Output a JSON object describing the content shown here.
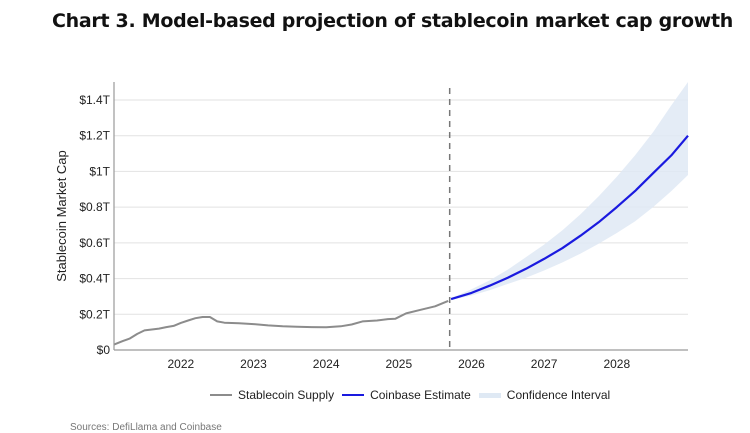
{
  "title": "Chart 3. Model-based projection of stablecoin market cap growth",
  "source": "Sources: DefiLlama and Coinbase",
  "chart_data": {
    "type": "line",
    "title": "Chart 3. Model-based projection of stablecoin market cap growth",
    "xlabel": "",
    "ylabel": "Stablecoin Market Cap",
    "xlim": [
      2021.08,
      2028.98
    ],
    "ylim": [
      0,
      1.5
    ],
    "y_ticks": [
      0,
      0.2,
      0.4,
      0.6,
      0.8,
      1.0,
      1.2,
      1.4
    ],
    "y_tick_labels": [
      "$0",
      "$0.2T",
      "$0.4T",
      "$0.6T",
      "$0.8T",
      "$1T",
      "$1.2T",
      "$1.4T"
    ],
    "x_ticks": [
      2022,
      2023,
      2024,
      2025,
      2026,
      2027,
      2028
    ],
    "x_tick_labels": [
      "2022",
      "2023",
      "2024",
      "2025",
      "2026",
      "2027",
      "2028"
    ],
    "grid": "horizontal",
    "projection_start": 2025.7,
    "legend_position": "bottom",
    "colors": {
      "supply": "#8c8c8c",
      "estimate": "#1a1adf",
      "band": "#dfe9f4",
      "grid": "#e2e2e2",
      "axis": "#9a9a9a",
      "divider": "#777777"
    },
    "series": [
      {
        "name": "Stablecoin Supply",
        "x": [
          2021.08,
          2021.2,
          2021.3,
          2021.4,
          2021.5,
          2021.6,
          2021.7,
          2021.8,
          2021.9,
          2022.0,
          2022.1,
          2022.2,
          2022.3,
          2022.4,
          2022.5,
          2022.6,
          2022.8,
          2023.0,
          2023.2,
          2023.4,
          2023.6,
          2023.8,
          2024.0,
          2024.2,
          2024.35,
          2024.5,
          2024.7,
          2024.85,
          2024.95,
          2025.1,
          2025.3,
          2025.5,
          2025.68
        ],
        "values": [
          0.03,
          0.05,
          0.065,
          0.09,
          0.11,
          0.115,
          0.12,
          0.128,
          0.135,
          0.152,
          0.165,
          0.178,
          0.185,
          0.185,
          0.16,
          0.153,
          0.15,
          0.145,
          0.138,
          0.133,
          0.13,
          0.128,
          0.127,
          0.133,
          0.143,
          0.16,
          0.165,
          0.173,
          0.175,
          0.205,
          0.225,
          0.245,
          0.275
        ]
      },
      {
        "name": "Coinbase Estimate",
        "x": [
          2025.72,
          2026.0,
          2026.25,
          2026.5,
          2026.75,
          2027.0,
          2027.25,
          2027.5,
          2027.75,
          2028.0,
          2028.25,
          2028.5,
          2028.75,
          2028.98
        ],
        "values": [
          0.285,
          0.32,
          0.36,
          0.405,
          0.455,
          0.51,
          0.57,
          0.64,
          0.715,
          0.8,
          0.89,
          0.99,
          1.09,
          1.2
        ]
      },
      {
        "name": "Confidence Interval",
        "x": [
          2025.72,
          2026.0,
          2026.25,
          2026.5,
          2026.75,
          2027.0,
          2027.25,
          2027.5,
          2027.75,
          2028.0,
          2028.25,
          2028.5,
          2028.75,
          2028.98
        ],
        "upper": [
          0.29,
          0.34,
          0.39,
          0.45,
          0.52,
          0.59,
          0.67,
          0.76,
          0.86,
          0.97,
          1.09,
          1.22,
          1.37,
          1.51
        ],
        "lower": [
          0.28,
          0.305,
          0.335,
          0.37,
          0.405,
          0.445,
          0.49,
          0.54,
          0.595,
          0.655,
          0.72,
          0.8,
          0.89,
          0.98
        ]
      }
    ]
  }
}
